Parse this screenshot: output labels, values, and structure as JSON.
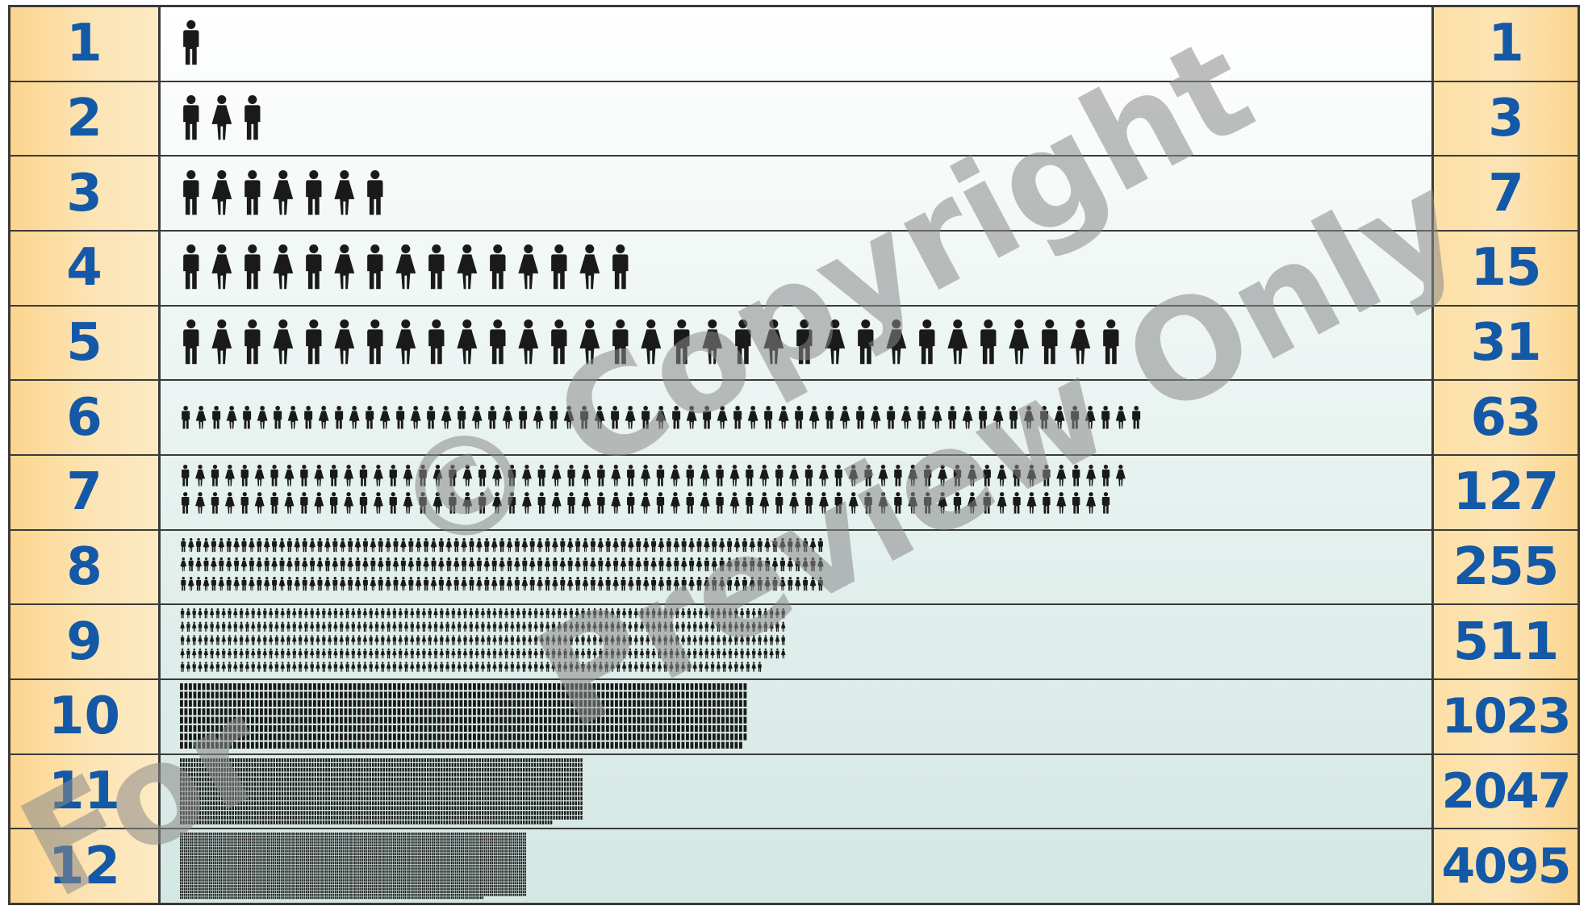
{
  "rows": [
    {
      "generation": "1",
      "total": "1",
      "count": 1
    },
    {
      "generation": "2",
      "total": "3",
      "count": 3
    },
    {
      "generation": "3",
      "total": "7",
      "count": 7
    },
    {
      "generation": "4",
      "total": "15",
      "count": 15
    },
    {
      "generation": "5",
      "total": "31",
      "count": 31
    },
    {
      "generation": "6",
      "total": "63",
      "count": 63
    },
    {
      "generation": "7",
      "total": "127",
      "count": 127
    },
    {
      "generation": "8",
      "total": "255",
      "count": 255
    },
    {
      "generation": "9",
      "total": "511",
      "count": 511
    },
    {
      "generation": "10",
      "total": "1023",
      "count": 1023
    },
    {
      "generation": "11",
      "total": "2047",
      "count": 2047
    },
    {
      "generation": "12",
      "total": "4095",
      "count": 4095
    }
  ],
  "watermark": {
    "line1": "© Copyright",
    "line2": "Preview Only",
    "line3": "For"
  },
  "colors": {
    "number_text": "#1458a8",
    "figure": "#1a1a1a",
    "column_band": "#fbd58e",
    "grid_line": "#3a3a3a"
  },
  "icons": [
    "man-figure-icon",
    "woman-figure-icon"
  ]
}
